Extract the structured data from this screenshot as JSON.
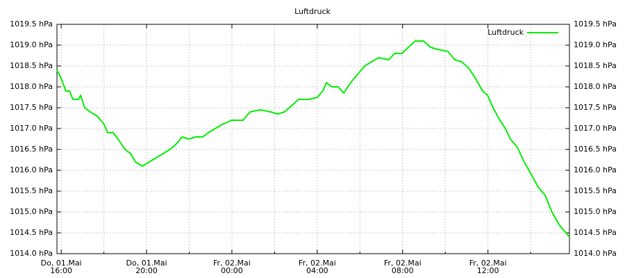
{
  "chart_data": {
    "type": "line",
    "title": "Luftdruck",
    "x": [
      15.8,
      16.0,
      16.22,
      16.39,
      16.55,
      16.81,
      16.91,
      17.1,
      17.36,
      17.69,
      18.01,
      18.18,
      18.44,
      18.73,
      18.99,
      19.25,
      19.48,
      19.8,
      20.13,
      20.45,
      20.78,
      21.1,
      21.43,
      21.66,
      21.98,
      22.31,
      22.63,
      22.89,
      23.22,
      23.54,
      24.0,
      24.52,
      24.85,
      25.33,
      25.82,
      26.15,
      26.47,
      26.8,
      27.12,
      27.61,
      28.0,
      28.26,
      28.43,
      28.69,
      28.98,
      29.24,
      29.56,
      29.89,
      30.22,
      30.54,
      30.87,
      31.35,
      31.62,
      31.97,
      32.27,
      32.59,
      32.98,
      33.31,
      33.63,
      34.12,
      34.45,
      34.77,
      35.1,
      35.42,
      35.75,
      35.98,
      36.24,
      36.56,
      36.82,
      37.05,
      37.38,
      37.7,
      38.03,
      38.35,
      38.68,
      39.0,
      39.33,
      39.65,
      39.82
    ],
    "series": [
      {
        "name": "Luftdruck",
        "color": "#00ee00",
        "values": [
          1018.4,
          1018.2,
          1017.9,
          1017.9,
          1017.7,
          1017.7,
          1017.8,
          1017.5,
          1017.4,
          1017.3,
          1017.1,
          1016.9,
          1016.9,
          1016.7,
          1016.5,
          1016.4,
          1016.2,
          1016.1,
          1016.2,
          1016.3,
          1016.4,
          1016.5,
          1016.65,
          1016.8,
          1016.75,
          1016.8,
          1016.8,
          1016.9,
          1017.0,
          1017.1,
          1017.2,
          1017.2,
          1017.4,
          1017.45,
          1017.4,
          1017.35,
          1017.4,
          1017.55,
          1017.7,
          1017.7,
          1017.75,
          1017.9,
          1018.1,
          1018.0,
          1018.0,
          1017.85,
          1018.1,
          1018.3,
          1018.5,
          1018.6,
          1018.7,
          1018.65,
          1018.8,
          1018.8,
          1018.95,
          1019.1,
          1019.1,
          1018.95,
          1018.9,
          1018.85,
          1018.65,
          1018.6,
          1018.45,
          1018.2,
          1017.9,
          1017.8,
          1017.5,
          1017.2,
          1017.0,
          1016.75,
          1016.55,
          1016.2,
          1015.9,
          1015.6,
          1015.4,
          1015.0,
          1014.7,
          1014.5,
          1014.4
        ]
      }
    ],
    "xlim": [
      15.8,
      39.82
    ],
    "xticks": [
      {
        "value": 16,
        "label": [
          "Do, 01.Mai",
          "16:00"
        ]
      },
      {
        "value": 20,
        "label": [
          "Do, 01.Mai",
          "20:00"
        ]
      },
      {
        "value": 24,
        "label": [
          "Fr, 02.Mai",
          "00:00"
        ]
      },
      {
        "value": 28,
        "label": [
          "Fr, 02.Mai",
          "04:00"
        ]
      },
      {
        "value": 32,
        "label": [
          "Fr, 02.Mai",
          "08:00"
        ]
      },
      {
        "value": 36,
        "label": [
          "Fr, 02.Mai",
          "12:00"
        ]
      }
    ],
    "xminor": [
      18,
      22,
      26,
      30,
      34,
      38
    ],
    "ylim": [
      1014.0,
      1019.5
    ],
    "yticks": [
      {
        "value": 1014.0,
        "label": "1014.0 hPa"
      },
      {
        "value": 1014.5,
        "label": "1014.5 hPa"
      },
      {
        "value": 1015.0,
        "label": "1015.0 hPa"
      },
      {
        "value": 1015.5,
        "label": "1015.5 hPa"
      },
      {
        "value": 1016.0,
        "label": "1016.0 hPa"
      },
      {
        "value": 1016.5,
        "label": "1016.5 hPa"
      },
      {
        "value": 1017.0,
        "label": "1017.0 hPa"
      },
      {
        "value": 1017.5,
        "label": "1017.5 hPa"
      },
      {
        "value": 1018.0,
        "label": "1018.0 hPa"
      },
      {
        "value": 1018.5,
        "label": "1018.5 hPa"
      },
      {
        "value": 1019.0,
        "label": "1019.0 hPa"
      },
      {
        "value": 1019.5,
        "label": "1019.5 hPa"
      }
    ],
    "grid": true,
    "legend": "top-right"
  }
}
